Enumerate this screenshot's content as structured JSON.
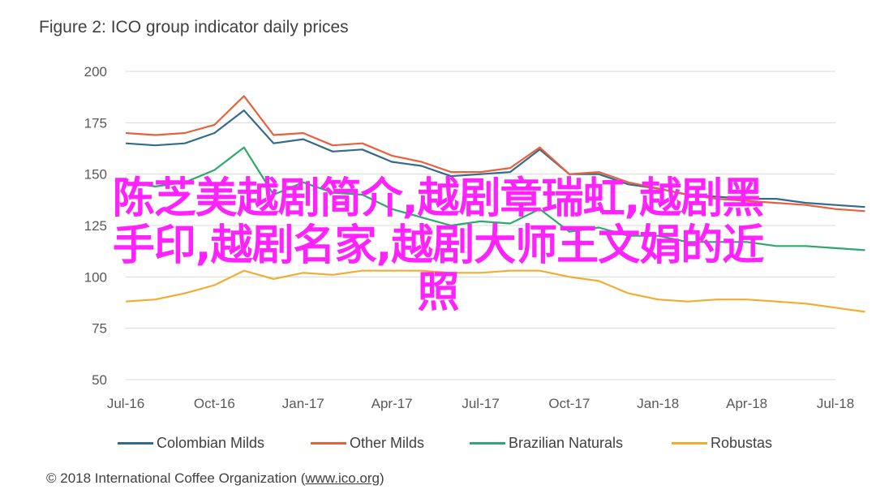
{
  "title": "Figure 2: ICO group indicator daily prices",
  "footer": {
    "prefix": "© 2018 International Coffee Organization (",
    "link": "www.ico.org",
    "suffix": ")"
  },
  "overlay_text": {
    "line1": "陈芝美越剧简介,越剧章瑞虹,越剧黑",
    "line2": "手印,越剧名家,越剧大师王文娟的近",
    "line3": "照"
  },
  "chart_data": {
    "type": "line",
    "title": "Figure 2: ICO group indicator daily prices",
    "xlabel": "",
    "ylabel": "",
    "ylim": [
      50,
      200
    ],
    "yticks": [
      50,
      75,
      100,
      125,
      150,
      175,
      200
    ],
    "xticks": [
      "Jul-16",
      "Oct-16",
      "Jan-17",
      "Apr-17",
      "Jul-17",
      "Oct-17",
      "Jan-18",
      "Apr-18",
      "Jul-18"
    ],
    "grid": true,
    "legend_position": "bottom",
    "x": [
      "Jul-16",
      "Aug-16",
      "Sep-16",
      "Oct-16",
      "Nov-16",
      "Dec-16",
      "Jan-17",
      "Feb-17",
      "Mar-17",
      "Apr-17",
      "May-17",
      "Jun-17",
      "Jul-17",
      "Aug-17",
      "Sep-17",
      "Oct-17",
      "Nov-17",
      "Dec-17",
      "Jan-18",
      "Feb-18",
      "Mar-18",
      "Apr-18",
      "May-18",
      "Jun-18",
      "Jul-18",
      "Aug-18"
    ],
    "series": [
      {
        "name": "Colombian Milds",
        "color": "#336b8c",
        "values": [
          165,
          164,
          165,
          170,
          181,
          165,
          167,
          161,
          162,
          156,
          154,
          149,
          150,
          151,
          162,
          150,
          150,
          145,
          143,
          140,
          139,
          138,
          138,
          136,
          135,
          134
        ]
      },
      {
        "name": "Other Milds",
        "color": "#e8603c",
        "values": [
          170,
          169,
          170,
          174,
          188,
          169,
          170,
          164,
          165,
          159,
          156,
          151,
          151,
          153,
          163,
          150,
          151,
          146,
          143,
          140,
          138,
          137,
          136,
          135,
          133,
          132
        ]
      },
      {
        "name": "Brazilian Naturals",
        "color": "#2ea86c",
        "values": [
          146,
          144,
          146,
          152,
          163,
          140,
          146,
          141,
          140,
          133,
          129,
          125,
          127,
          126,
          133,
          122,
          124,
          120,
          120,
          117,
          117,
          117,
          115,
          115,
          114,
          113
        ]
      },
      {
        "name": "Robustas",
        "color": "#f2ad30",
        "values": [
          88,
          89,
          92,
          96,
          103,
          99,
          102,
          101,
          103,
          103,
          103,
          102,
          102,
          103,
          103,
          100,
          98,
          92,
          89,
          88,
          89,
          89,
          88,
          87,
          85,
          83
        ]
      }
    ]
  }
}
